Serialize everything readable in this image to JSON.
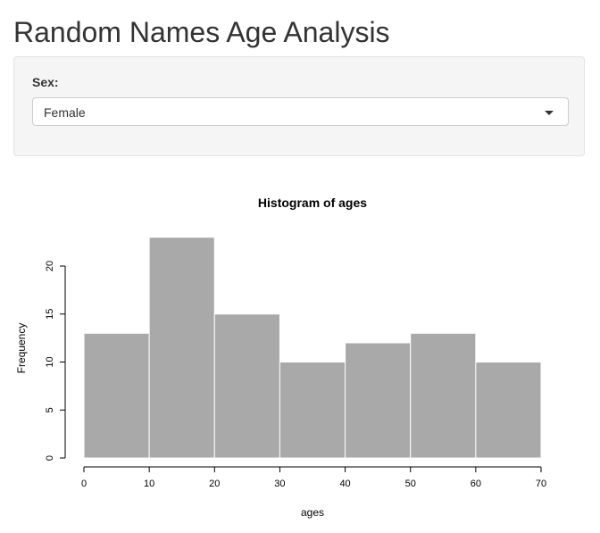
{
  "header": {
    "title": "Random Names Age Analysis"
  },
  "controls": {
    "sex_label": "Sex:",
    "sex_value": "Female"
  },
  "chart_data": {
    "type": "bar",
    "title": "Histogram of ages",
    "xlabel": "ages",
    "ylabel": "Frequency",
    "bin_edges": [
      0,
      10,
      20,
      30,
      40,
      50,
      60,
      70
    ],
    "values": [
      13,
      23,
      15,
      10,
      12,
      13,
      10
    ],
    "x_ticks": [
      0,
      10,
      20,
      30,
      40,
      50,
      60,
      70
    ],
    "y_ticks": [
      0,
      5,
      10,
      15,
      20
    ],
    "xlim": [
      0,
      70
    ],
    "ylim": [
      0,
      23
    ],
    "grid": false,
    "bar_color": "#a9a9a9",
    "bar_edge_color": "#ffffff"
  }
}
